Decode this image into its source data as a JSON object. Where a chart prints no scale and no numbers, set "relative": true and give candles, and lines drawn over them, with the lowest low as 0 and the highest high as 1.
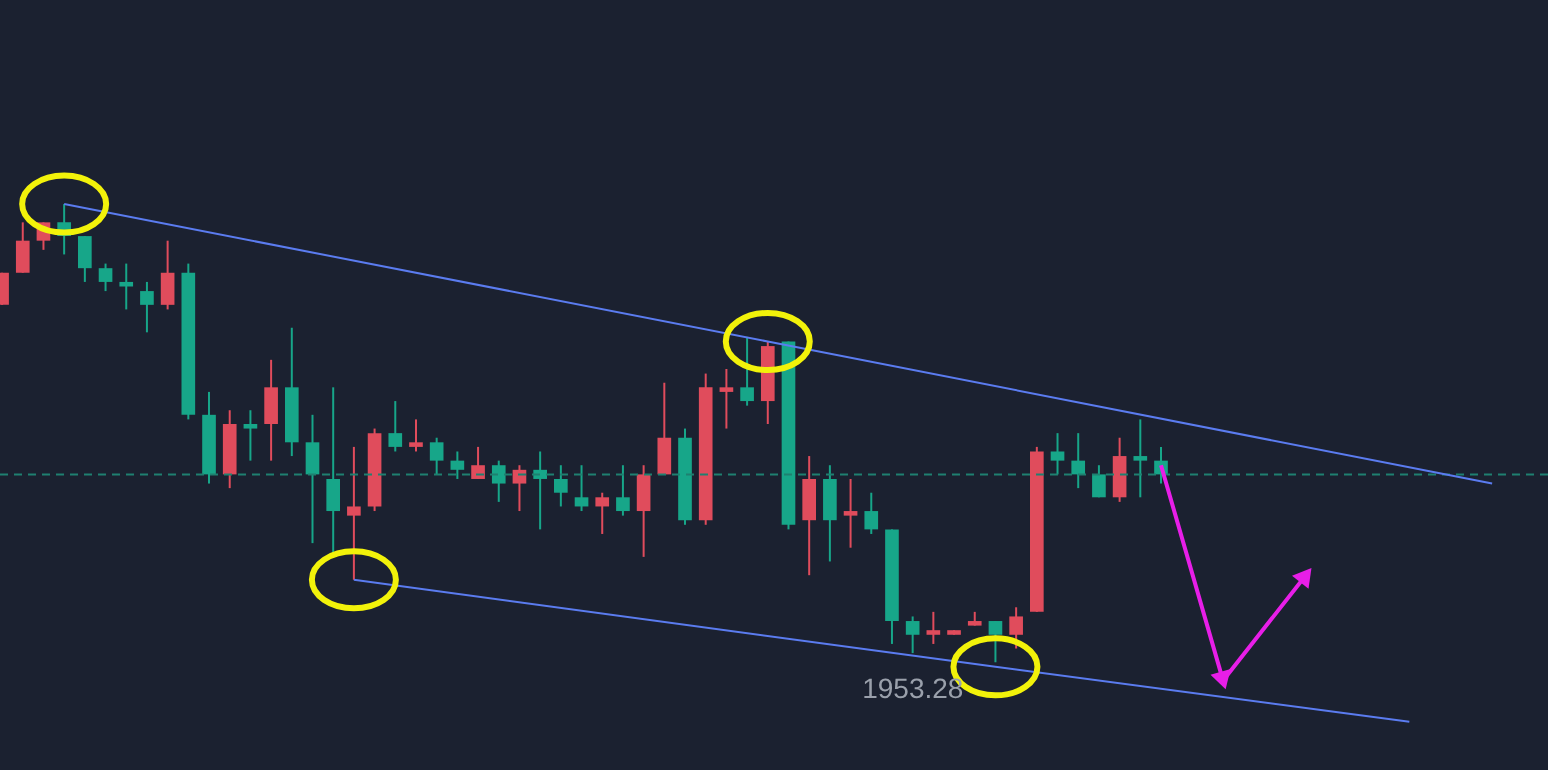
{
  "chart_data": {
    "type": "candlestick",
    "relative": true,
    "categories": [
      null,
      null,
      null,
      null,
      null,
      null,
      null,
      null,
      null,
      null,
      null,
      null,
      null,
      null,
      null,
      null,
      null,
      null,
      null,
      null,
      null,
      null,
      null,
      null,
      null,
      null,
      null,
      null,
      null,
      null,
      null,
      null,
      null,
      null,
      null,
      null,
      null,
      null,
      null,
      null,
      null,
      null,
      null,
      null,
      null,
      null,
      null,
      null,
      null,
      null,
      null,
      null,
      null,
      null,
      null,
      null,
      null,
      null,
      null,
      null,
      null,
      null,
      null,
      null,
      null,
      null,
      null,
      null,
      null,
      null,
      null,
      null,
      null
    ],
    "ohlc": [
      [
        0.78,
        0.85,
        0.78,
        0.85
      ],
      [
        0.85,
        0.96,
        0.85,
        0.92
      ],
      [
        0.92,
        0.96,
        0.9,
        0.96
      ],
      [
        0.96,
        1.0,
        0.89,
        0.93
      ],
      [
        0.93,
        0.93,
        0.83,
        0.86
      ],
      [
        0.86,
        0.87,
        0.81,
        0.83
      ],
      [
        0.83,
        0.87,
        0.77,
        0.82
      ],
      [
        0.81,
        0.83,
        0.72,
        0.78
      ],
      [
        0.78,
        0.92,
        0.77,
        0.85
      ],
      [
        0.85,
        0.87,
        0.53,
        0.54
      ],
      [
        0.54,
        0.59,
        0.39,
        0.41
      ],
      [
        0.41,
        0.55,
        0.38,
        0.52
      ],
      [
        0.52,
        0.55,
        0.44,
        0.51
      ],
      [
        0.52,
        0.66,
        0.44,
        0.6
      ],
      [
        0.6,
        0.73,
        0.45,
        0.48
      ],
      [
        0.48,
        0.54,
        0.26,
        0.41
      ],
      [
        0.4,
        0.6,
        0.23,
        0.33
      ],
      [
        0.32,
        0.47,
        0.18,
        0.34
      ],
      [
        0.34,
        0.51,
        0.33,
        0.5
      ],
      [
        0.5,
        0.57,
        0.46,
        0.47
      ],
      [
        0.47,
        0.53,
        0.46,
        0.48
      ],
      [
        0.48,
        0.49,
        0.41,
        0.44
      ],
      [
        0.44,
        0.46,
        0.4,
        0.42
      ],
      [
        0.4,
        0.47,
        0.4,
        0.43
      ],
      [
        0.43,
        0.44,
        0.35,
        0.39
      ],
      [
        0.39,
        0.43,
        0.33,
        0.42
      ],
      [
        0.42,
        0.46,
        0.29,
        0.4
      ],
      [
        0.4,
        0.43,
        0.34,
        0.37
      ],
      [
        0.36,
        0.43,
        0.33,
        0.34
      ],
      [
        0.34,
        0.37,
        0.28,
        0.36
      ],
      [
        0.36,
        0.43,
        0.32,
        0.33
      ],
      [
        0.33,
        0.43,
        0.23,
        0.41
      ],
      [
        0.41,
        0.61,
        0.41,
        0.49
      ],
      [
        0.49,
        0.51,
        0.3,
        0.31
      ],
      [
        0.31,
        0.63,
        0.3,
        0.6
      ],
      [
        0.59,
        0.64,
        0.51,
        0.6
      ],
      [
        0.6,
        0.71,
        0.56,
        0.57
      ],
      [
        0.57,
        0.7,
        0.52,
        0.69
      ],
      [
        0.7,
        0.7,
        0.29,
        0.3
      ],
      [
        0.31,
        0.45,
        0.19,
        0.4
      ],
      [
        0.4,
        0.43,
        0.22,
        0.31
      ],
      [
        0.32,
        0.4,
        0.25,
        0.33
      ],
      [
        0.33,
        0.37,
        0.28,
        0.29
      ],
      [
        0.29,
        0.29,
        0.04,
        0.09
      ],
      [
        0.09,
        0.1,
        0.02,
        0.06
      ],
      [
        0.06,
        0.11,
        0.04,
        0.07
      ],
      [
        0.06,
        0.07,
        0.06,
        0.07
      ],
      [
        0.08,
        0.11,
        0.08,
        0.09
      ],
      [
        0.09,
        0.09,
        0.0,
        0.06
      ],
      [
        0.06,
        0.12,
        0.03,
        0.1
      ],
      [
        0.11,
        0.47,
        0.11,
        0.46
      ],
      [
        0.46,
        0.5,
        0.41,
        0.44
      ],
      [
        0.44,
        0.5,
        0.38,
        0.41
      ],
      [
        0.41,
        0.43,
        0.36,
        0.36
      ],
      [
        0.36,
        0.49,
        0.35,
        0.45
      ],
      [
        0.45,
        0.53,
        0.36,
        0.44
      ],
      [
        0.44,
        0.47,
        0.39,
        0.41
      ],
      null,
      null,
      null,
      null,
      null,
      null,
      null,
      null,
      null,
      null,
      null,
      null,
      null,
      null,
      null,
      null
    ],
    "colors": [
      "#e04c5c",
      "#e04c5c",
      "#e04c5c",
      "#17a689",
      "#17a689",
      "#17a689",
      "#17a689",
      "#17a689",
      "#e04c5c",
      "#17a689",
      "#17a689",
      "#e04c5c",
      "#17a689",
      "#e04c5c",
      "#17a689",
      "#17a689",
      "#17a689",
      "#e04c5c",
      "#e04c5c",
      "#17a689",
      "#e04c5c",
      "#17a689",
      "#17a689",
      "#e04c5c",
      "#17a689",
      "#e04c5c",
      "#17a689",
      "#17a689",
      "#17a689",
      "#e04c5c",
      "#17a689",
      "#e04c5c",
      "#e04c5c",
      "#17a689",
      "#e04c5c",
      "#e04c5c",
      "#17a689",
      "#e04c5c",
      "#17a689",
      "#e04c5c",
      "#17a689",
      "#e04c5c",
      "#17a689",
      "#17a689",
      "#17a689",
      "#e04c5c",
      "#e04c5c",
      "#e04c5c",
      "#17a689",
      "#e04c5c",
      "#e04c5c",
      "#17a689",
      "#17a689",
      "#17a689",
      "#e04c5c",
      "#17a689",
      "#17a689",
      null,
      null,
      null,
      null,
      null,
      null,
      null,
      null,
      null,
      null,
      null,
      null,
      null,
      null,
      null,
      null
    ],
    "series": [
      {
        "type": "line",
        "values": [
          null,
          null,
          null,
          1.0,
          null,
          null,
          null,
          null,
          null,
          null,
          null,
          null,
          null,
          null,
          null,
          null,
          null,
          null,
          null,
          null,
          null,
          null,
          null,
          null,
          null,
          null,
          null,
          null,
          null,
          null,
          null,
          null,
          null,
          null,
          null,
          null,
          null,
          0.7,
          null,
          null,
          null,
          null,
          null,
          null,
          null,
          null,
          null,
          null,
          null,
          null,
          null,
          null,
          null,
          null,
          null,
          null,
          null,
          null,
          null,
          null,
          null,
          null,
          null,
          null,
          null,
          null,
          null,
          null,
          null,
          null,
          null,
          null,
          0.39
        ],
        "color": "#5b7cf0",
        "marker": "circle"
      },
      {
        "type": "line",
        "values": [
          null,
          null,
          null,
          null,
          null,
          null,
          null,
          null,
          null,
          null,
          null,
          null,
          null,
          null,
          null,
          null,
          null,
          0.18,
          null,
          null,
          null,
          null,
          null,
          null,
          null,
          null,
          null,
          null,
          null,
          null,
          null,
          null,
          null,
          null,
          null,
          null,
          null,
          null,
          null,
          null,
          null,
          null,
          null,
          null,
          null,
          null,
          null,
          null,
          -0.01,
          null,
          null,
          null,
          null,
          null,
          null,
          null,
          null,
          null,
          null,
          null,
          null,
          null,
          null,
          null,
          null,
          null,
          null,
          null,
          -0.13,
          null,
          null,
          null,
          null
        ],
        "color": "#5b7cf0",
        "marker": "circle"
      },
      {
        "type": "line",
        "values": [
          null,
          null,
          null,
          null,
          null,
          null,
          null,
          null,
          null,
          null,
          null,
          null,
          null,
          null,
          null,
          null,
          null,
          null,
          null,
          null,
          null,
          null,
          null,
          null,
          null,
          null,
          null,
          null,
          null,
          null,
          null,
          null,
          null,
          null,
          null,
          null,
          null,
          null,
          null,
          null,
          null,
          null,
          null,
          null,
          null,
          null,
          null,
          null,
          null,
          null,
          null,
          null,
          null,
          null,
          null,
          null,
          0.43,
          null,
          null,
          -0.04,
          null,
          null,
          null,
          0.19,
          null,
          null,
          null,
          null,
          null,
          null,
          null,
          null,
          null
        ],
        "color": "#e81ee8"
      }
    ],
    "ref_lines": [
      {
        "axis": "y",
        "value": 0.41,
        "color": "#1f8070",
        "line_style": "dashed"
      }
    ],
    "annotations": [
      {
        "text": "1953.28",
        "y": 0.0
      }
    ]
  }
}
